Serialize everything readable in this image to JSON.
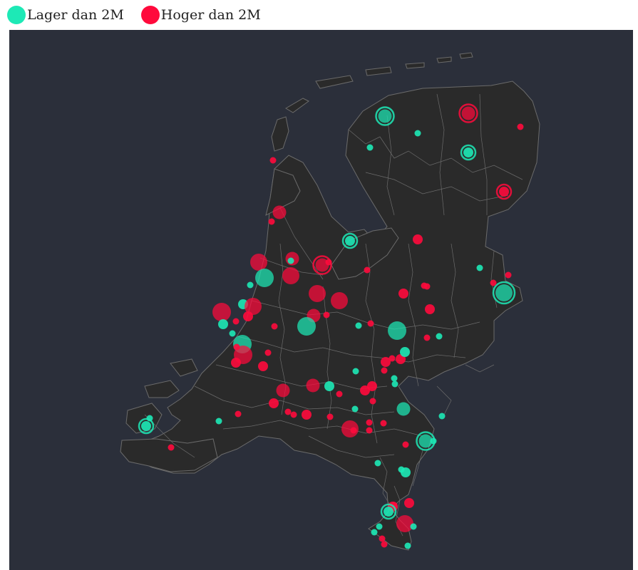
{
  "legend": {
    "items": [
      {
        "label": "Lager dan 2M",
        "color": "#1de9b6"
      },
      {
        "label": "Hoger dan 2M",
        "color": "#ff0a3c"
      }
    ]
  },
  "map": {
    "region": "Nederland",
    "land_color": "#2a2a2a",
    "border_color": "#6b6b6b",
    "background_color": "#2b2f3a",
    "markers": [
      {
        "category": "low",
        "size": 3,
        "ring": true
      },
      {
        "category": "low",
        "size": 1
      },
      {
        "category": "low",
        "size": 1
      },
      {
        "category": "high",
        "size": 3,
        "ring": true
      },
      {
        "category": "low",
        "size": 2,
        "ring": true
      },
      {
        "category": "high",
        "size": 1
      },
      {
        "category": "high",
        "size": 2,
        "ring": true
      },
      {
        "category": "high",
        "size": 1
      },
      {
        "category": "high",
        "size": 3
      },
      {
        "category": "high",
        "size": 1
      },
      {
        "category": "low",
        "size": 2,
        "ring": true
      },
      {
        "category": "high",
        "size": 2
      },
      {
        "category": "high",
        "size": 4
      },
      {
        "category": "low",
        "size": 5
      },
      {
        "category": "high",
        "size": 4
      },
      {
        "category": "high",
        "size": 3
      },
      {
        "category": "low",
        "size": 1
      },
      {
        "category": "high",
        "size": 1
      },
      {
        "category": "low",
        "size": 1
      },
      {
        "category": "high",
        "size": 3,
        "ring": true
      },
      {
        "category": "high",
        "size": 1
      },
      {
        "category": "high",
        "size": 1
      },
      {
        "category": "low",
        "size": 1
      },
      {
        "category": "low",
        "size": 4,
        "ring": true
      },
      {
        "category": "high",
        "size": 1
      },
      {
        "category": "high",
        "size": 1
      },
      {
        "category": "high",
        "size": 2
      },
      {
        "category": "high",
        "size": 4
      },
      {
        "category": "low",
        "size": 2
      },
      {
        "category": "high",
        "size": 5
      },
      {
        "category": "low",
        "size": 2
      },
      {
        "category": "high",
        "size": 1
      },
      {
        "category": "low",
        "size": 1
      },
      {
        "category": "high",
        "size": 2
      },
      {
        "category": "high",
        "size": 4
      },
      {
        "category": "low",
        "size": 5
      },
      {
        "category": "high",
        "size": 5
      },
      {
        "category": "high",
        "size": 2
      },
      {
        "category": "high",
        "size": 2
      },
      {
        "category": "high",
        "size": 3
      },
      {
        "category": "high",
        "size": 4
      },
      {
        "category": "low",
        "size": 5
      },
      {
        "category": "high",
        "size": 1
      },
      {
        "category": "low",
        "size": 1
      },
      {
        "category": "high",
        "size": 1
      },
      {
        "category": "high",
        "size": 1
      },
      {
        "category": "low",
        "size": 5
      },
      {
        "category": "high",
        "size": 2
      },
      {
        "category": "low",
        "size": 1
      },
      {
        "category": "high",
        "size": 1
      },
      {
        "category": "high",
        "size": 1
      },
      {
        "category": "high",
        "size": 1
      },
      {
        "category": "high",
        "size": 3
      },
      {
        "category": "low",
        "size": 2
      },
      {
        "category": "high",
        "size": 3
      },
      {
        "category": "low",
        "size": 1
      },
      {
        "category": "high",
        "size": 2
      },
      {
        "category": "high",
        "size": 1
      },
      {
        "category": "low",
        "size": 1
      },
      {
        "category": "high",
        "size": 2
      },
      {
        "category": "high",
        "size": 2
      },
      {
        "category": "low",
        "size": 3
      },
      {
        "category": "low",
        "size": 1
      },
      {
        "category": "high",
        "size": 1
      },
      {
        "category": "low",
        "size": 1
      },
      {
        "category": "high",
        "size": 1
      },
      {
        "category": "high",
        "size": 2
      },
      {
        "category": "low",
        "size": 2,
        "ring": true
      },
      {
        "category": "low",
        "size": 1
      },
      {
        "category": "high",
        "size": 1
      },
      {
        "category": "low",
        "size": 1
      },
      {
        "category": "high",
        "size": 1
      },
      {
        "category": "high",
        "size": 1
      },
      {
        "category": "high",
        "size": 4
      },
      {
        "category": "high",
        "size": 1
      },
      {
        "category": "high",
        "size": 1
      },
      {
        "category": "low",
        "size": 1
      },
      {
        "category": "low",
        "size": 2
      },
      {
        "category": "high",
        "size": 1
      },
      {
        "category": "high",
        "size": 2
      },
      {
        "category": "low",
        "size": 2,
        "ring": true
      },
      {
        "category": "low",
        "size": 1
      },
      {
        "category": "low",
        "size": 1
      },
      {
        "category": "high",
        "size": 4
      },
      {
        "category": "low",
        "size": 1
      },
      {
        "category": "high",
        "size": 1
      },
      {
        "category": "high",
        "size": 1
      },
      {
        "category": "high",
        "size": 1
      },
      {
        "category": "high",
        "size": 1
      },
      {
        "category": "high",
        "size": 1
      },
      {
        "category": "low",
        "size": 1
      },
      {
        "category": "high",
        "size": 2
      },
      {
        "category": "low",
        "size": 1
      },
      {
        "category": "high",
        "size": 2
      },
      {
        "category": "high",
        "size": 1
      },
      {
        "category": "high",
        "size": 1
      },
      {
        "category": "low",
        "size": 1
      },
      {
        "category": "low",
        "size": 3,
        "ring": true
      },
      {
        "category": "high",
        "size": 2
      },
      {
        "category": "low",
        "size": 1
      },
      {
        "category": "high",
        "size": 1
      },
      {
        "category": "high",
        "size": 1
      },
      {
        "category": "low",
        "size": 2
      }
    ]
  }
}
